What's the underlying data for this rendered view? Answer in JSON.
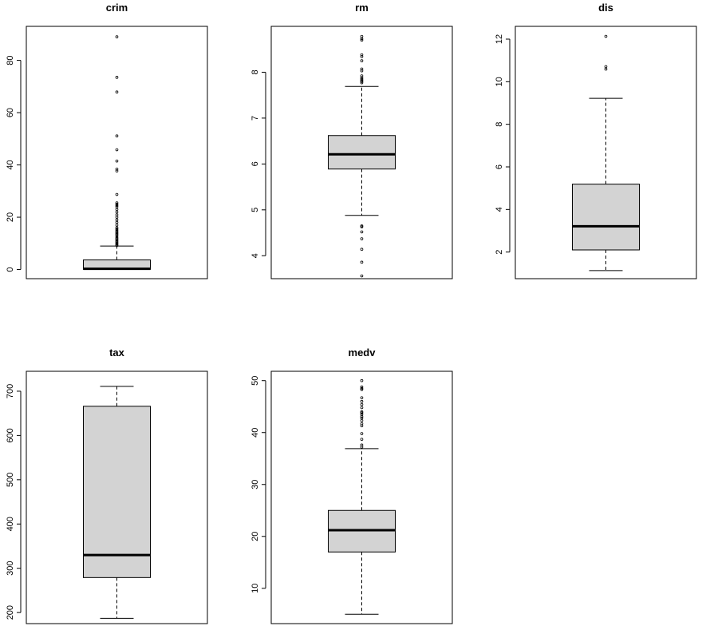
{
  "chart_data": [
    {
      "type": "boxplot",
      "title": "crim",
      "ylim": [
        -3.5,
        93
      ],
      "yticks": [
        0,
        20,
        40,
        60,
        80
      ],
      "stats": {
        "min": 0.006,
        "q1": 0.08,
        "median": 0.26,
        "q3": 3.68,
        "max": 8.98
      },
      "outliers": [
        9.2,
        9.5,
        9.9,
        10.2,
        10.6,
        11.0,
        11.4,
        11.8,
        12.2,
        12.8,
        13.3,
        13.7,
        14.1,
        14.5,
        15.0,
        15.5,
        16.0,
        17.0,
        18.0,
        19.0,
        20.0,
        20.9,
        22.0,
        23.0,
        24.0,
        24.5,
        25.0,
        25.5,
        28.7,
        37.7,
        38.4,
        41.5,
        45.8,
        51.1,
        67.9,
        73.5,
        89.0
      ]
    },
    {
      "type": "boxplot",
      "title": "rm",
      "ylim": [
        3.5,
        9.0
      ],
      "yticks": [
        4,
        5,
        6,
        7,
        8
      ],
      "stats": {
        "min": 4.88,
        "q1": 5.89,
        "median": 6.21,
        "q3": 6.62,
        "max": 7.69
      },
      "outliers": [
        3.56,
        3.86,
        4.14,
        4.37,
        4.52,
        4.63,
        4.65,
        7.77,
        7.8,
        7.82,
        7.85,
        7.88,
        7.92,
        8.03,
        8.07,
        8.25,
        8.34,
        8.38,
        8.7,
        8.73,
        8.78
      ]
    },
    {
      "type": "boxplot",
      "title": "dis",
      "ylim": [
        0.75,
        12.6
      ],
      "yticks": [
        2,
        4,
        6,
        8,
        10,
        12
      ],
      "stats": {
        "min": 1.13,
        "q1": 2.1,
        "median": 3.21,
        "q3": 5.19,
        "max": 9.22
      },
      "outliers": [
        10.59,
        10.71,
        12.13
      ]
    },
    {
      "type": "boxplot",
      "title": "tax",
      "ylim": [
        175,
        745
      ],
      "yticks": [
        200,
        300,
        400,
        500,
        600,
        700
      ],
      "stats": {
        "min": 187,
        "q1": 279,
        "median": 330,
        "q3": 666,
        "max": 711
      },
      "outliers": []
    },
    {
      "type": "boxplot",
      "title": "medv",
      "ylim": [
        3.2,
        51.8
      ],
      "yticks": [
        10,
        20,
        30,
        40,
        50
      ],
      "stats": {
        "min": 5,
        "q1": 17.0,
        "median": 21.2,
        "q3": 25.0,
        "max": 36.9
      },
      "outliers": [
        37.2,
        37.6,
        38.7,
        39.8,
        41.3,
        41.7,
        42.3,
        42.8,
        43.1,
        43.5,
        43.8,
        44.0,
        44.8,
        45.4,
        46.0,
        46.7,
        48.3,
        48.5,
        48.8,
        50.0
      ]
    }
  ]
}
